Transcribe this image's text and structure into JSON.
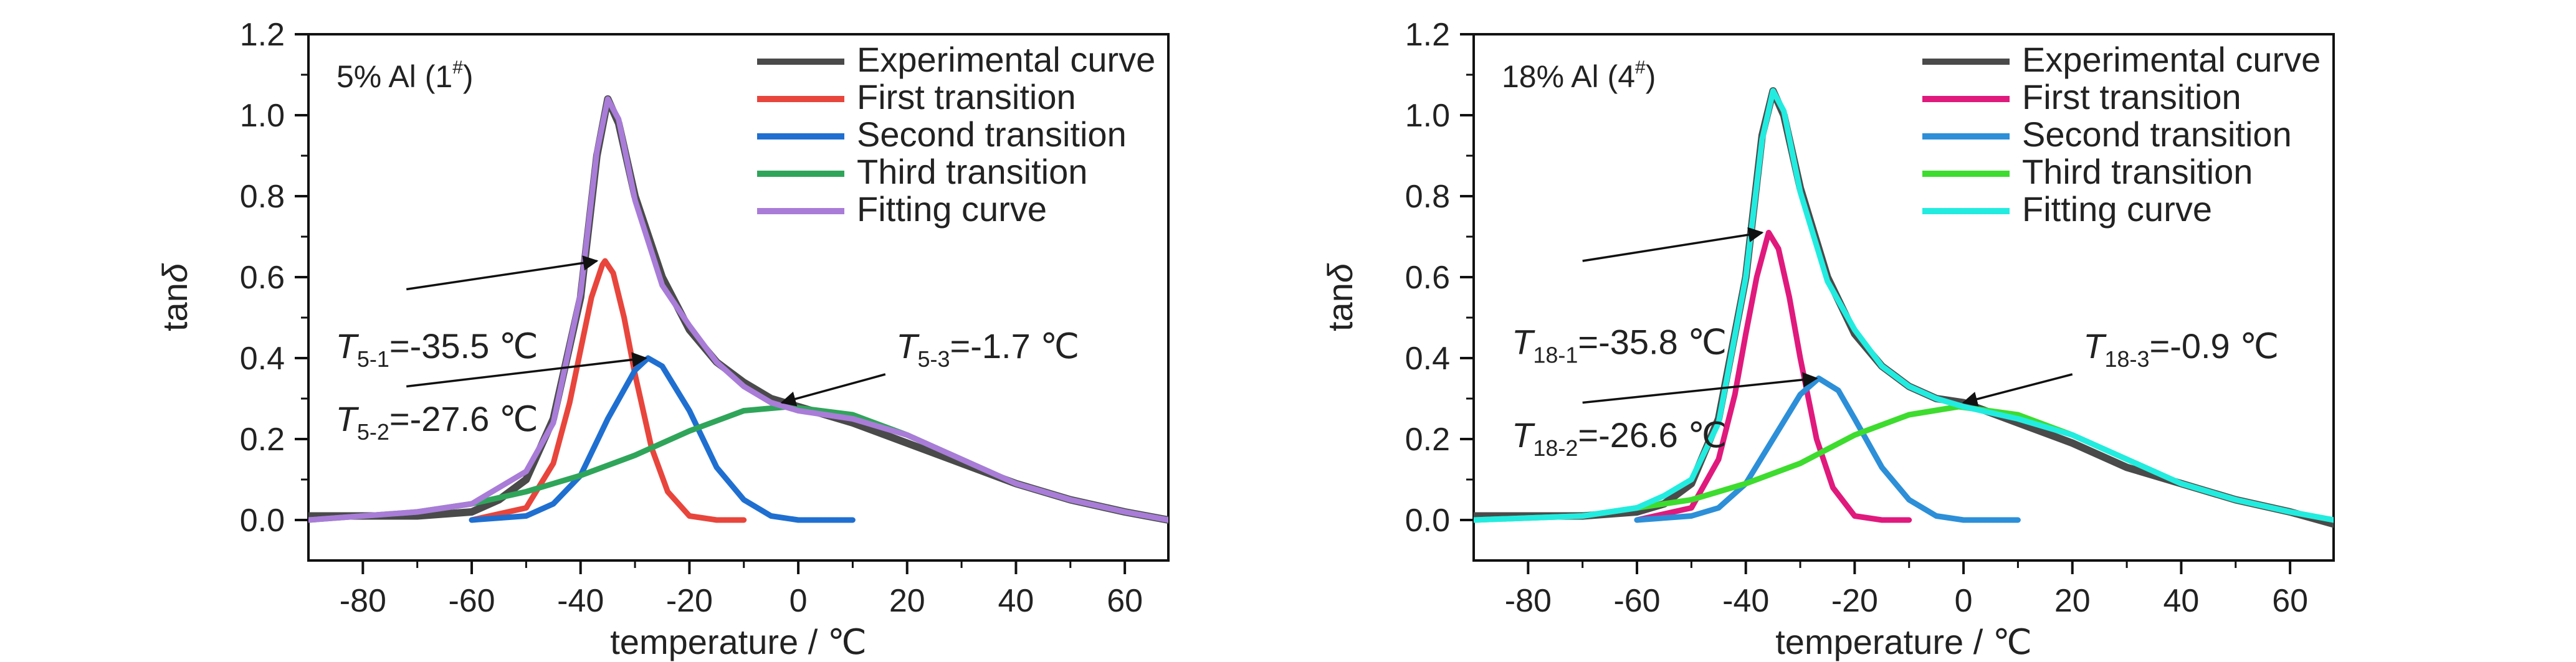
{
  "chart_data": [
    {
      "type": "line",
      "panel_label": "5% Al (1",
      "panel_label_sup": "#",
      "panel_label_close": ")",
      "xlabel": "temperature / ℃",
      "ylabel_main": "tan",
      "ylabel_symbol": "δ",
      "xlim": [
        -90,
        68
      ],
      "ylim": [
        -0.1,
        1.2
      ],
      "xticks": [
        -80,
        -60,
        -40,
        -20,
        0,
        20,
        40,
        60
      ],
      "yticks": [
        0.0,
        0.2,
        0.4,
        0.6,
        0.8,
        1.0,
        1.2
      ],
      "xtick_labels": [
        "-80",
        "-60",
        "-40",
        "-20",
        "0",
        "20",
        "40",
        "60"
      ],
      "ytick_labels": [
        "0.0",
        "0.2",
        "0.4",
        "0.6",
        "0.8",
        "1.0",
        "1.2"
      ],
      "legend_position": "top-right",
      "series": [
        {
          "name": "Experimental curve",
          "color": "#4a4a4a",
          "x": [
            -90,
            -70,
            -60,
            -55,
            -50,
            -45,
            -40,
            -37,
            -35,
            -33,
            -30,
            -25,
            -20,
            -15,
            -10,
            -5,
            0,
            10,
            20,
            30,
            40,
            50,
            60,
            68
          ],
          "y": [
            0.01,
            0.01,
            0.02,
            0.05,
            0.1,
            0.25,
            0.55,
            0.9,
            1.04,
            0.98,
            0.8,
            0.6,
            0.47,
            0.39,
            0.34,
            0.3,
            0.28,
            0.24,
            0.19,
            0.14,
            0.09,
            0.05,
            0.02,
            0.0
          ]
        },
        {
          "name": "First transition",
          "color": "#e8453c",
          "x": [
            -60,
            -50,
            -45,
            -42,
            -40,
            -38,
            -36,
            -35.5,
            -34,
            -32,
            -30,
            -27,
            -24,
            -20,
            -15,
            -10
          ],
          "y": [
            0.0,
            0.03,
            0.14,
            0.29,
            0.42,
            0.55,
            0.63,
            0.64,
            0.61,
            0.5,
            0.36,
            0.18,
            0.07,
            0.01,
            0.0,
            0.0
          ]
        },
        {
          "name": "Second transition",
          "color": "#1f6fd1",
          "x": [
            -60,
            -50,
            -45,
            -40,
            -35,
            -30,
            -27.6,
            -25,
            -20,
            -15,
            -10,
            -5,
            0,
            10
          ],
          "y": [
            0.0,
            0.01,
            0.04,
            0.11,
            0.25,
            0.37,
            0.4,
            0.38,
            0.27,
            0.13,
            0.05,
            0.01,
            0.0,
            0.0
          ]
        },
        {
          "name": "Third transition",
          "color": "#2fa55a",
          "x": [
            -90,
            -70,
            -60,
            -50,
            -40,
            -30,
            -20,
            -10,
            -1.7,
            10,
            20,
            30,
            40,
            50,
            60,
            68
          ],
          "y": [
            0.0,
            0.02,
            0.04,
            0.07,
            0.11,
            0.16,
            0.22,
            0.27,
            0.28,
            0.26,
            0.21,
            0.15,
            0.09,
            0.05,
            0.02,
            0.0
          ]
        },
        {
          "name": "Fitting curve",
          "color": "#a97cd8",
          "x": [
            -90,
            -70,
            -60,
            -55,
            -50,
            -45,
            -40,
            -37,
            -35,
            -33,
            -30,
            -25,
            -20,
            -15,
            -10,
            -5,
            0,
            10,
            20,
            30,
            40,
            50,
            60,
            68
          ],
          "y": [
            0.0,
            0.02,
            0.04,
            0.08,
            0.12,
            0.24,
            0.56,
            0.91,
            1.04,
            0.99,
            0.79,
            0.58,
            0.48,
            0.39,
            0.33,
            0.29,
            0.27,
            0.25,
            0.21,
            0.15,
            0.09,
            0.05,
            0.02,
            0.0
          ]
        }
      ],
      "annotations": [
        {
          "symbol": "T",
          "sub": "5-1",
          "text": "=-35.5 ℃",
          "label_x": -85,
          "label_y": 0.4,
          "arrow_from": [
            -72,
            0.57
          ],
          "arrow_to": [
            -37,
            0.64
          ]
        },
        {
          "symbol": "T",
          "sub": "5-2",
          "text": "=-27.6 ℃",
          "label_x": -85,
          "label_y": 0.22,
          "arrow_from": [
            -72,
            0.33
          ],
          "arrow_to": [
            -28,
            0.4
          ]
        },
        {
          "symbol": "T",
          "sub": "5-3",
          "text": "=-1.7 ℃",
          "label_x": 18,
          "label_y": 0.4,
          "arrow_from": [
            16,
            0.36
          ],
          "arrow_to": [
            -3,
            0.29
          ]
        }
      ]
    },
    {
      "type": "line",
      "panel_label": "18% Al (4",
      "panel_label_sup": "#",
      "panel_label_close": ")",
      "xlabel": "temperature / ℃",
      "ylabel_main": "tan",
      "ylabel_symbol": "δ",
      "xlim": [
        -90,
        68
      ],
      "ylim": [
        -0.1,
        1.2
      ],
      "xticks": [
        -80,
        -60,
        -40,
        -20,
        0,
        20,
        40,
        60
      ],
      "yticks": [
        0.0,
        0.2,
        0.4,
        0.6,
        0.8,
        1.0,
        1.2
      ],
      "xtick_labels": [
        "-80",
        "-60",
        "-40",
        "-20",
        "0",
        "20",
        "40",
        "60"
      ],
      "ytick_labels": [
        "0.0",
        "0.2",
        "0.4",
        "0.6",
        "0.8",
        "1.0",
        "1.2"
      ],
      "legend_position": "top-right",
      "series": [
        {
          "name": "Experimental curve",
          "color": "#4a4a4a",
          "x": [
            -90,
            -70,
            -60,
            -55,
            -50,
            -45,
            -40,
            -37,
            -35,
            -33,
            -30,
            -25,
            -20,
            -15,
            -10,
            -5,
            0,
            10,
            20,
            30,
            40,
            50,
            60,
            68
          ],
          "y": [
            0.01,
            0.01,
            0.02,
            0.04,
            0.09,
            0.25,
            0.6,
            0.95,
            1.06,
            1.0,
            0.82,
            0.6,
            0.46,
            0.38,
            0.33,
            0.3,
            0.29,
            0.24,
            0.19,
            0.13,
            0.09,
            0.05,
            0.02,
            -0.01
          ]
        },
        {
          "name": "First transition",
          "color": "#e0197d",
          "x": [
            -60,
            -50,
            -45,
            -42,
            -40,
            -38,
            -36,
            -35.8,
            -34,
            -32,
            -30,
            -27,
            -24,
            -20,
            -15,
            -10
          ],
          "y": [
            0.0,
            0.03,
            0.15,
            0.31,
            0.46,
            0.6,
            0.7,
            0.71,
            0.67,
            0.55,
            0.4,
            0.2,
            0.08,
            0.01,
            0.0,
            0.0
          ]
        },
        {
          "name": "Second transition",
          "color": "#2c8fd8",
          "x": [
            -60,
            -50,
            -45,
            -40,
            -35,
            -30,
            -26.6,
            -23,
            -20,
            -15,
            -10,
            -5,
            0,
            10
          ],
          "y": [
            0.0,
            0.01,
            0.03,
            0.09,
            0.2,
            0.31,
            0.35,
            0.32,
            0.25,
            0.13,
            0.05,
            0.01,
            0.0,
            0.0
          ]
        },
        {
          "name": "Third transition",
          "color": "#3ddc2e",
          "x": [
            -90,
            -70,
            -60,
            -50,
            -40,
            -30,
            -20,
            -10,
            -0.9,
            10,
            20,
            30,
            40,
            50,
            60,
            68
          ],
          "y": [
            0.0,
            0.01,
            0.03,
            0.05,
            0.09,
            0.14,
            0.21,
            0.26,
            0.28,
            0.26,
            0.21,
            0.15,
            0.09,
            0.05,
            0.02,
            0.0
          ]
        },
        {
          "name": "Fitting curve",
          "color": "#22ece0",
          "x": [
            -90,
            -70,
            -60,
            -55,
            -50,
            -45,
            -40,
            -37,
            -35,
            -33,
            -30,
            -25,
            -20,
            -15,
            -10,
            -5,
            0,
            10,
            20,
            30,
            40,
            50,
            60,
            68
          ],
          "y": [
            0.0,
            0.01,
            0.03,
            0.06,
            0.1,
            0.24,
            0.6,
            0.94,
            1.06,
            1.01,
            0.81,
            0.59,
            0.47,
            0.38,
            0.33,
            0.3,
            0.28,
            0.25,
            0.21,
            0.15,
            0.09,
            0.05,
            0.02,
            0.0
          ]
        }
      ],
      "annotations": [
        {
          "symbol": "T",
          "sub": "18-1",
          "text": "=-35.8 ℃",
          "label_x": -83,
          "label_y": 0.41,
          "arrow_from": [
            -70,
            0.64
          ],
          "arrow_to": [
            -37,
            0.71
          ]
        },
        {
          "symbol": "T",
          "sub": "18-2",
          "text": "=-26.6 ℃",
          "label_x": -83,
          "label_y": 0.18,
          "arrow_from": [
            -70,
            0.29
          ],
          "arrow_to": [
            -27,
            0.35
          ]
        },
        {
          "symbol": "T",
          "sub": "18-3",
          "text": "=-0.9 ℃",
          "label_x": 22,
          "label_y": 0.4,
          "arrow_from": [
            20,
            0.36
          ],
          "arrow_to": [
            0,
            0.29
          ]
        }
      ]
    }
  ]
}
